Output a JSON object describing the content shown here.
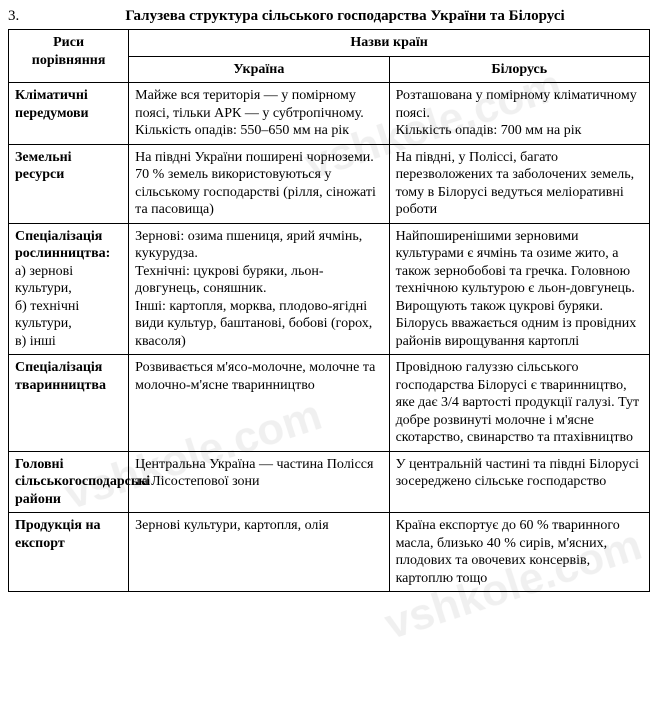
{
  "task_number": "3.",
  "title": "Галузева структура сільського господарства України та Білорусі",
  "watermark": "vshkole.com",
  "table": {
    "head_features": "Риси порівняння",
    "head_countries": "Назви країн",
    "head_ukraine": "Україна",
    "head_belarus": "Білорусь",
    "rows": [
      {
        "label": "Кліматичні передумови",
        "sublabel": "",
        "ukraine": "Майже вся територія — у помірному поясі, тільки АРК — у субтропічному. Кількість опадів: 550–650 мм на рік",
        "belarus": "Розташована у помірному кліматичному поясі.\nКількість опадів: 700 мм на рік"
      },
      {
        "label": "Земельні ресурси",
        "sublabel": "",
        "ukraine": "На півдні України поширені чорноземи.\n70 % земель використовуються у сільському господарстві (рілля, сіножаті та пасовища)",
        "belarus": "На півдні, у Поліссі, багато перезволожених та заболочених земель, тому в Білорусі ведуться меліоративні роботи"
      },
      {
        "label": "Спеціалізація рослинництва:",
        "sublabel": "а) зернові культури,\nб) технічні культури,\nв) інші",
        "ukraine": "Зернові: озима пшениця, ярий ячмінь, кукурудза.\nТехнічні: цукрові буряки, льон-довгунець, соняшник.\nІнші: картопля, морква, плодово-ягідні види культур, баштанові, бобові (горох, квасоля)",
        "belarus": "Найпоширенішими зерновими культурами є ячмінь та озиме жито, а також зернобобові та гречка. Головною технічною культурою є льон-довгунець. Вирощують також цукрові буряки. Білорусь вважається одним із провідних районів вирощування картоплі"
      },
      {
        "label": "Спеціалізація тваринництва",
        "sublabel": "",
        "ukraine": "Розвивається м'ясо-молочне, молочне та молочно-м'ясне тваринництво",
        "belarus": "Провідною галуззю сільського господарства Білорусі є тваринництво, яке дає 3/4 вартості продукції галузі. Тут добре розвинуті молочне і м'ясне скотарство, свинарство та птахівництво"
      },
      {
        "label": "Головні сільськогосподарські райони",
        "sublabel": "",
        "ukraine": "Центральна Україна — частина Полісся та Лісостепової зони",
        "belarus": "У центральній частині та півдні Білорусі зосереджено сільське господарство"
      },
      {
        "label": "Продукція на експорт",
        "sublabel": "",
        "ukraine": "Зернові культури, картопля, олія",
        "belarus": "Країна експортує до 60 % тваринного масла, близько 40 % сирів, м'ясних, плодових та овочевих консервів, картоплю тощо"
      }
    ]
  }
}
